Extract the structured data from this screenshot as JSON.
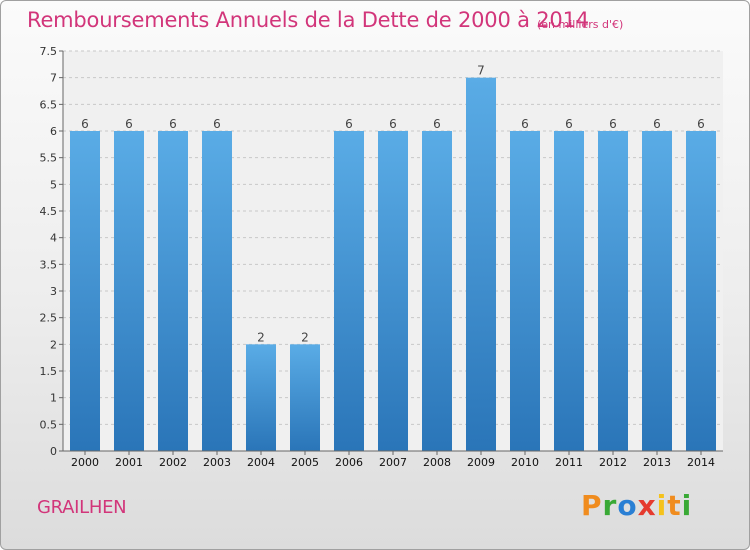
{
  "header": {
    "title": "Remboursements Annuels de la Dette de 2000 à 2014",
    "unit": "(en milliers d'€)"
  },
  "footer": {
    "commune": "GRAILHEN",
    "logo_text": "Proxiti"
  },
  "colors": {
    "title": "#d2357a",
    "bar_top": "#5aace6",
    "bar_bottom": "#2a75b8"
  },
  "chart_data": {
    "type": "bar",
    "title": "Remboursements Annuels de la Dette de 2000 à 2014",
    "subtitle": "(en milliers d'€)",
    "xlabel": "",
    "ylabel": "",
    "categories": [
      "2000",
      "2001",
      "2002",
      "2003",
      "2004",
      "2005",
      "2006",
      "2007",
      "2008",
      "2009",
      "2010",
      "2011",
      "2012",
      "2013",
      "2014"
    ],
    "values": [
      6,
      6,
      6,
      6,
      2,
      2,
      6,
      6,
      6,
      7,
      6,
      6,
      6,
      6,
      6
    ],
    "data_labels": [
      "6",
      "6",
      "6",
      "6",
      "2",
      "2",
      "6",
      "6",
      "6",
      "7",
      "6",
      "6",
      "6",
      "6",
      "6"
    ],
    "ylim": [
      0,
      7.5
    ],
    "y_ticks": [
      0,
      0.5,
      1,
      1.5,
      2,
      2.5,
      3,
      3.5,
      4,
      4.5,
      5,
      5.5,
      6,
      6.5,
      7,
      7.5
    ],
    "y_tick_labels": [
      "0",
      "0.5",
      "1",
      "1.5",
      "2",
      "2.5",
      "3",
      "3.5",
      "4",
      "4.5",
      "5",
      "5.5",
      "6",
      "6.5",
      "7",
      "7.5"
    ],
    "grid": true,
    "legend": "none"
  }
}
